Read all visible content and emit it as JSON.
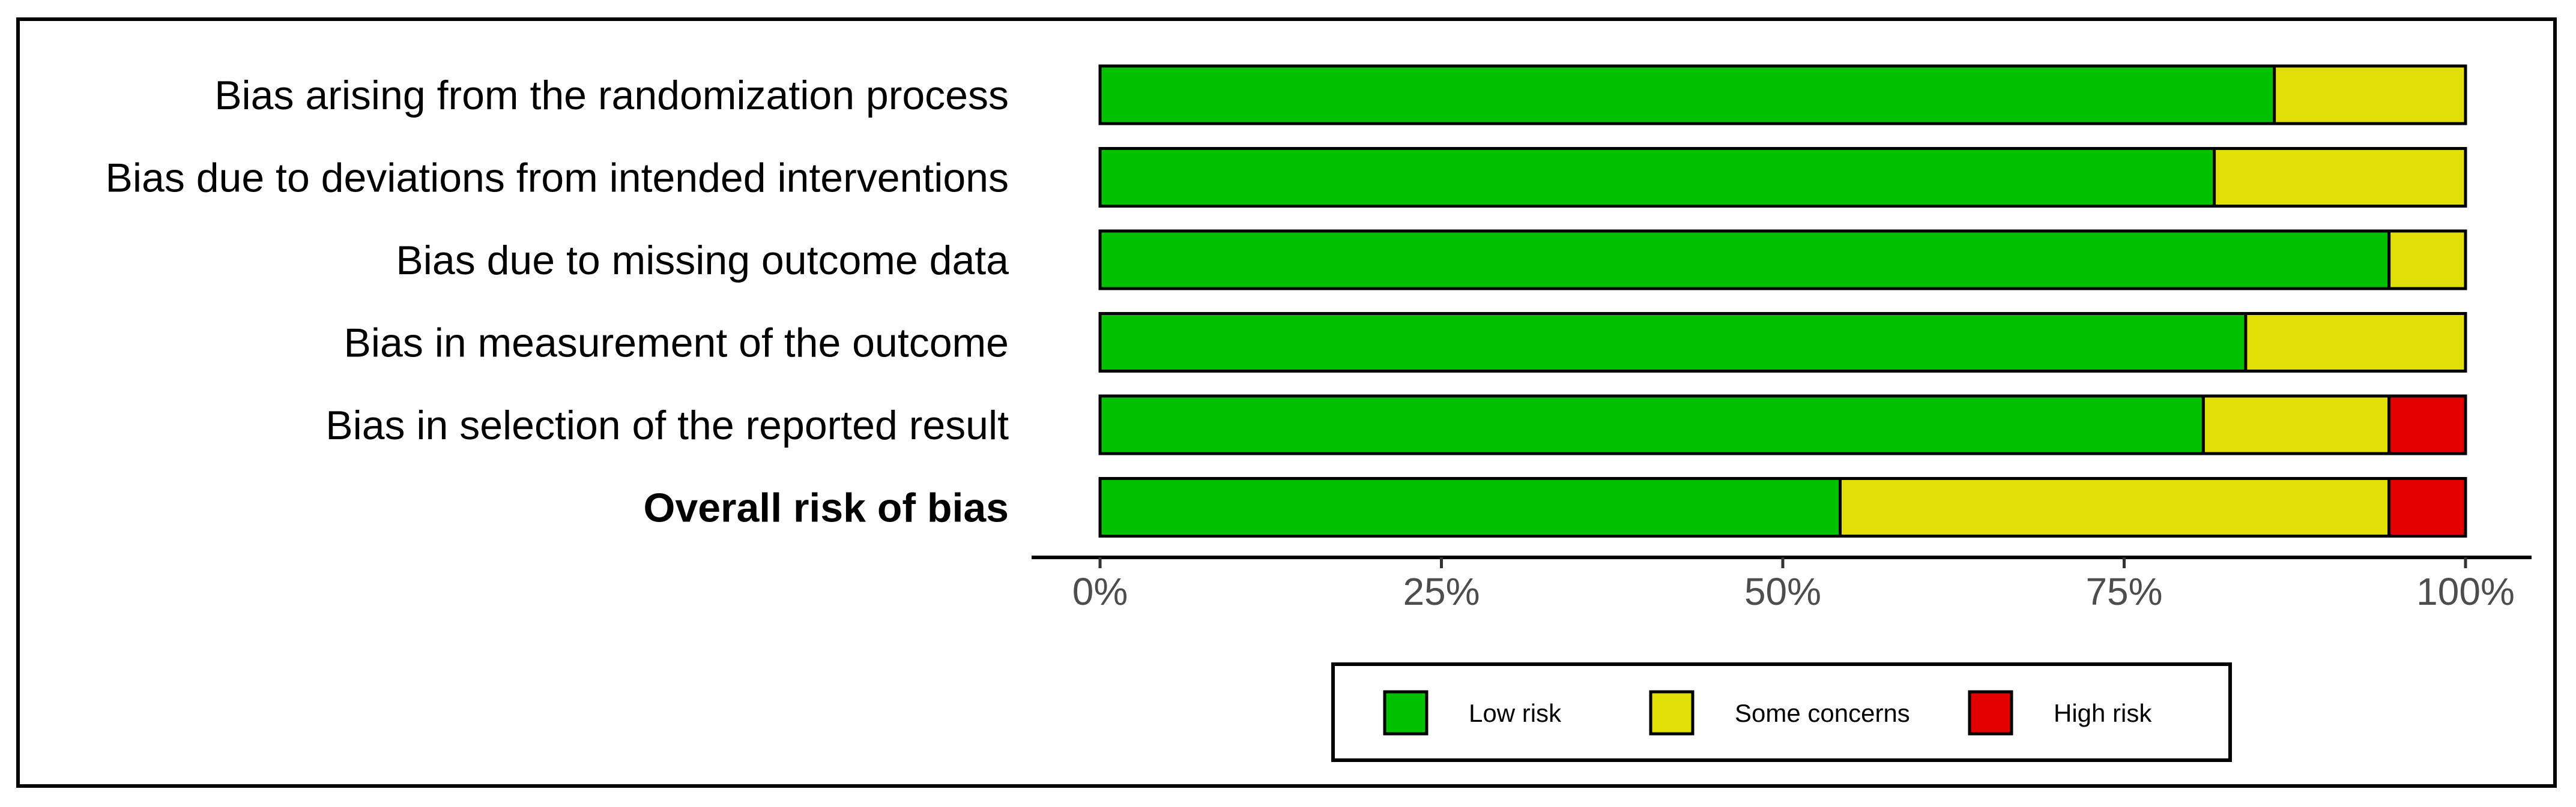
{
  "chart_data": {
    "type": "bar",
    "stacked": true,
    "orientation": "horizontal",
    "categories": [
      "Bias arising from the randomization process",
      "Bias due to deviations from intended interventions",
      "Bias due to missing outcome data",
      "Bias in measurement of the outcome",
      "Bias in selection of the reported result",
      "Overall risk of bias"
    ],
    "bold_categories": [
      "Overall risk of bias"
    ],
    "series": [
      {
        "name": "Low risk",
        "color": "#02C100",
        "values": [
          86,
          81.6,
          94.4,
          83.9,
          80.8,
          54.2
        ]
      },
      {
        "name": "Some concerns",
        "color": "#E2DF07",
        "values": [
          14,
          18.4,
          5.6,
          16.1,
          13.6,
          40.2
        ]
      },
      {
        "name": "High risk",
        "color": "#E20000",
        "values": [
          0,
          0,
          0,
          0,
          5.6,
          5.6
        ]
      }
    ],
    "xlim": [
      0,
      100
    ],
    "x_ticks": [
      "0%",
      "25%",
      "50%",
      "75%",
      "100%"
    ],
    "legend_position": "bottom",
    "title": "",
    "xlabel": "",
    "ylabel": ""
  }
}
